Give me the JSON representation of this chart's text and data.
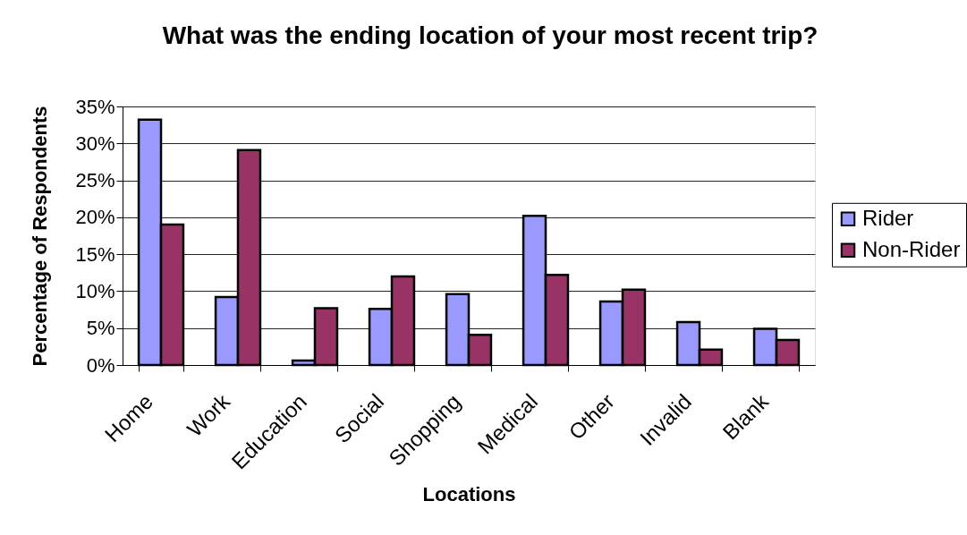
{
  "chart_data": {
    "type": "bar",
    "title": "What was the ending location of your most recent trip?",
    "xlabel": "Locations",
    "ylabel": "Percentage of Respondents",
    "categories": [
      "Home",
      "Work",
      "Education",
      "Social",
      "Shopping",
      "Medical",
      "Other",
      "Invalid",
      "Blank"
    ],
    "series": [
      {
        "name": "Rider",
        "color": "#9999ff",
        "values": [
          33.2,
          9.2,
          0.6,
          7.6,
          9.6,
          20.2,
          8.6,
          5.8,
          4.9
        ]
      },
      {
        "name": "Non-Rider",
        "color": "#993366",
        "values": [
          19.0,
          29.1,
          7.7,
          12.0,
          4.1,
          12.2,
          10.2,
          2.1,
          3.4
        ]
      }
    ],
    "ylim": [
      0,
      35
    ],
    "yticks": [
      {
        "value": 0,
        "label": "0%"
      },
      {
        "value": 5,
        "label": "5%"
      },
      {
        "value": 10,
        "label": "10%"
      },
      {
        "value": 15,
        "label": "15%"
      },
      {
        "value": 20,
        "label": "20%"
      },
      {
        "value": 25,
        "label": "25%"
      },
      {
        "value": 30,
        "label": "30%"
      },
      {
        "value": 35,
        "label": "35%"
      }
    ],
    "grid": "y",
    "legend": "right"
  }
}
